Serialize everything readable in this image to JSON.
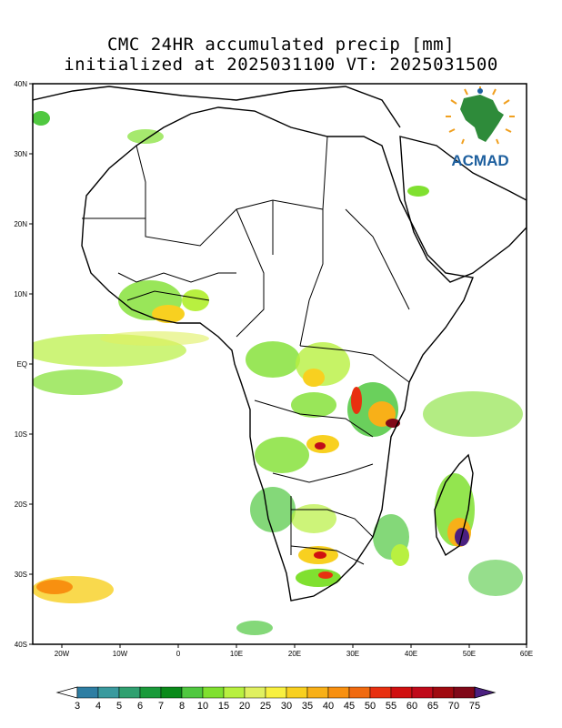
{
  "header": {
    "title_line1": "CMC 24HR accumulated precip [mm]",
    "title_line2": "initialized at 2025031100 VT: 2025031500"
  },
  "logo": {
    "text": "ACMAD",
    "colors": {
      "africa": "#2e8b3a",
      "text": "#1d5f9e",
      "rays": "#f0a020"
    }
  },
  "map": {
    "lat_labels": [
      "40N",
      "30N",
      "20N",
      "10N",
      "EQ",
      "10S",
      "20S",
      "30S",
      "40S"
    ],
    "lon_labels": [
      "20W",
      "10W",
      "0",
      "10E",
      "20E",
      "30E",
      "40E",
      "50E",
      "60E"
    ],
    "lon_range": [
      -25,
      60
    ],
    "lat_range": [
      -40,
      40
    ]
  },
  "colorbar": {
    "labels": [
      "3",
      "4",
      "5",
      "6",
      "7",
      "8",
      "10",
      "15",
      "20",
      "25",
      "30",
      "35",
      "40",
      "45",
      "50",
      "55",
      "60",
      "65",
      "70",
      "75"
    ],
    "colors": [
      "#2e7ea3",
      "#3a9a9e",
      "#30a070",
      "#1a9a3a",
      "#0a8a1a",
      "#50c840",
      "#80e030",
      "#b8f040",
      "#e0f060",
      "#f8f040",
      "#f8d020",
      "#f8b018",
      "#f89010",
      "#f06a10",
      "#e83010",
      "#d01010",
      "#c00a1a",
      "#a00a10",
      "#800818",
      "#600820"
    ],
    "end_colors": {
      "low": "#ffffff",
      "high": "#4b2080"
    }
  }
}
